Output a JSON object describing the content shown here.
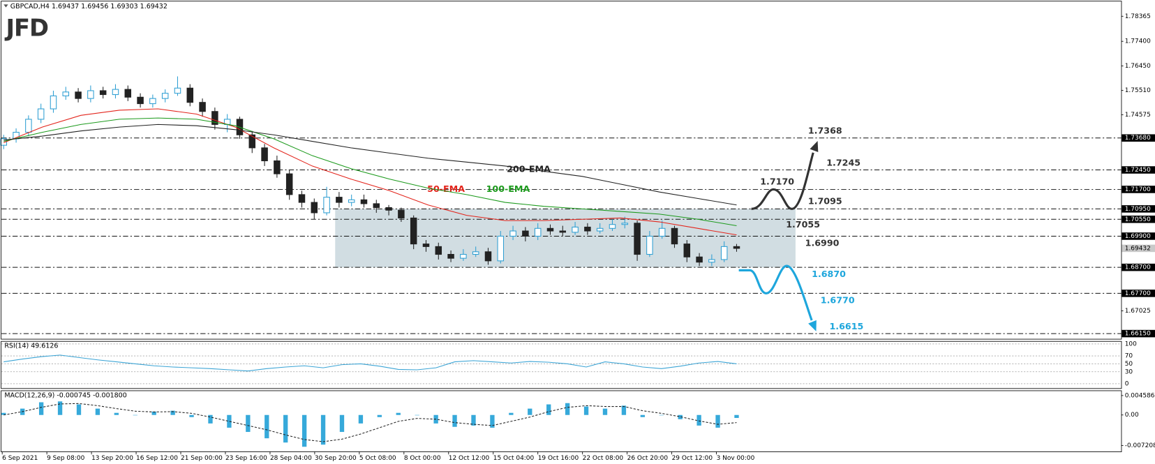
{
  "header": "GBPCAD,H4 1.69437 1.69456 1.69303 1.69432",
  "logo": "JFD",
  "chart_data": [
    {
      "type": "candlestick",
      "ylim": [
        1.6595,
        1.7899
      ],
      "yticks": [
        1.78365,
        {
          "value": 1.774,
          "label": "1.77400"
        },
        {
          "value": 1.7645,
          "label": "1.76450"
        },
        {
          "value": 1.7551,
          "label": "1.75510"
        },
        1.74575,
        1.67025
      ],
      "up_color": "#2f9fd3",
      "down_color": "#222222",
      "open": [
        1.734,
        1.7365,
        1.739,
        1.744,
        1.748,
        1.753,
        1.7545,
        1.752,
        1.755,
        1.7535,
        1.7555,
        1.7525,
        1.75,
        1.752,
        1.754,
        1.756,
        1.7505,
        1.747,
        1.742,
        1.744,
        1.738,
        1.733,
        1.728,
        1.723,
        1.715,
        1.712,
        1.708,
        1.714,
        1.712,
        1.713,
        1.7115,
        1.71,
        1.709,
        1.706,
        1.696,
        1.695,
        1.692,
        1.6905,
        1.692,
        1.693,
        1.6895,
        1.699,
        1.701,
        1.699,
        1.702,
        1.701,
        1.7005,
        1.7025,
        1.701,
        1.702,
        1.7035,
        1.704,
        1.692,
        1.699,
        1.702,
        1.696,
        1.691,
        1.689,
        1.69,
        1.695
      ],
      "high": [
        1.738,
        1.7405,
        1.7455,
        1.75,
        1.755,
        1.7565,
        1.756,
        1.757,
        1.7565,
        1.7575,
        1.757,
        1.754,
        1.7535,
        1.7555,
        1.7605,
        1.7575,
        1.752,
        1.7485,
        1.746,
        1.745,
        1.7395,
        1.7345,
        1.73,
        1.7245,
        1.7165,
        1.7135,
        1.718,
        1.716,
        1.715,
        1.715,
        1.713,
        1.711,
        1.71,
        1.707,
        1.6975,
        1.6965,
        1.6935,
        1.694,
        1.695,
        1.6945,
        1.701,
        1.703,
        1.7025,
        1.704,
        1.7035,
        1.703,
        1.7045,
        1.704,
        1.704,
        1.7055,
        1.7065,
        1.705,
        1.701,
        1.705,
        1.703,
        1.6975,
        1.6925,
        1.692,
        1.697,
        1.696
      ],
      "low": [
        1.7325,
        1.735,
        1.7375,
        1.7425,
        1.7465,
        1.7515,
        1.7505,
        1.7505,
        1.752,
        1.752,
        1.751,
        1.7485,
        1.7485,
        1.7505,
        1.753,
        1.749,
        1.745,
        1.74,
        1.739,
        1.7365,
        1.731,
        1.726,
        1.7215,
        1.713,
        1.71,
        1.7055,
        1.707,
        1.71,
        1.7105,
        1.71,
        1.708,
        1.707,
        1.7045,
        1.694,
        1.693,
        1.69,
        1.689,
        1.6895,
        1.691,
        1.688,
        1.6885,
        1.6975,
        1.697,
        1.6975,
        1.6995,
        1.699,
        1.6995,
        1.6995,
        1.7,
        1.701,
        1.702,
        1.6895,
        1.691,
        1.698,
        1.6945,
        1.689,
        1.6875,
        1.6875,
        1.689,
        1.693
      ],
      "close": [
        1.7365,
        1.739,
        1.744,
        1.748,
        1.753,
        1.7545,
        1.752,
        1.755,
        1.7535,
        1.7555,
        1.7525,
        1.75,
        1.752,
        1.754,
        1.756,
        1.7505,
        1.747,
        1.742,
        1.744,
        1.738,
        1.733,
        1.728,
        1.723,
        1.715,
        1.712,
        1.708,
        1.714,
        1.712,
        1.713,
        1.7115,
        1.71,
        1.709,
        1.706,
        1.696,
        1.695,
        1.692,
        1.6905,
        1.692,
        1.693,
        1.6895,
        1.699,
        1.701,
        1.699,
        1.702,
        1.701,
        1.7005,
        1.7025,
        1.701,
        1.702,
        1.7035,
        1.704,
        1.692,
        1.699,
        1.702,
        1.696,
        1.691,
        1.689,
        1.69,
        1.695,
        1.6943
      ],
      "series": [
        {
          "name": "50-EMA",
          "color": "#e3241b",
          "values": [
            1.735,
            1.741,
            1.7455,
            1.7475,
            1.748,
            1.746,
            1.741,
            1.733,
            1.726,
            1.721,
            1.7165,
            1.711,
            1.707,
            1.705,
            1.705,
            1.7055,
            1.706,
            1.7045,
            1.702,
            1.6995
          ]
        },
        {
          "name": "100-EMA",
          "color": "#1c9a1c",
          "values": [
            1.7355,
            1.739,
            1.742,
            1.744,
            1.7445,
            1.744,
            1.7415,
            1.7365,
            1.73,
            1.725,
            1.721,
            1.7175,
            1.715,
            1.712,
            1.7105,
            1.7095,
            1.7085,
            1.7075,
            1.7055,
            1.703
          ]
        },
        {
          "name": "200-EMA",
          "color": "#222222",
          "values": [
            1.736,
            1.7375,
            1.7395,
            1.741,
            1.742,
            1.7415,
            1.74,
            1.738,
            1.7355,
            1.733,
            1.731,
            1.729,
            1.7275,
            1.726,
            1.724,
            1.722,
            1.719,
            1.716,
            1.7135,
            1.711
          ]
        }
      ],
      "levels": [
        {
          "value": 1.7368,
          "axis_label": "1.73680",
          "label": "1.7368",
          "color": "#333333"
        },
        {
          "value": 1.7245,
          "axis_label": "1.72450",
          "label": "1.7245",
          "color": "#333333"
        },
        {
          "value": 1.717,
          "axis_label": "1.71700",
          "label": "1.7170",
          "color": "#333333"
        },
        {
          "value": 1.7095,
          "axis_label": "1.70950",
          "label": "1.7095",
          "color": "#333333"
        },
        {
          "value": 1.7055,
          "axis_label": "1.70550",
          "label": "1.7055",
          "color": "#333333"
        },
        {
          "value": 1.699,
          "axis_label": "1.69900",
          "label": "1.6990",
          "color": "#333333"
        },
        {
          "value": 1.687,
          "axis_label": "1.68700",
          "label": "1.6870",
          "color": "#1ea6dc"
        },
        {
          "value": 1.677,
          "axis_label": "1.67700",
          "label": "1.6770",
          "color": "#1ea6dc"
        },
        {
          "value": 1.6615,
          "axis_label": "1.66150",
          "label": "1.6615",
          "color": "#1ea6dc"
        }
      ],
      "last_price": {
        "value": 1.69432,
        "label": "1.69432"
      },
      "x_labels": [
        "6 Sep 2021",
        "9 Sep 08:00",
        "13 Sep 20:00",
        "16 Sep 12:00",
        "21 Sep 00:00",
        "23 Sep 16:00",
        "28 Sep 04:00",
        "30 Sep 20:00",
        "5 Oct 08:00",
        "8 Oct 00:00",
        "12 Oct 12:00",
        "15 Oct 04:00",
        "19 Oct 16:00",
        "22 Oct 08:00",
        "26 Oct 20:00",
        "29 Oct 12:00",
        "3 Nov 00:00"
      ]
    },
    {
      "type": "line",
      "title": "RSI(14) 49.6126",
      "ylim": [
        0,
        100
      ],
      "yticks": [
        100,
        70,
        50,
        30,
        0
      ],
      "color": "#3ba4d5",
      "values": [
        55,
        62,
        68,
        72,
        66,
        60,
        55,
        50,
        45,
        42,
        40,
        38,
        35,
        32,
        38,
        42,
        45,
        40,
        48,
        50,
        44,
        36,
        35,
        40,
        55,
        58,
        55,
        52,
        56,
        54,
        50,
        42,
        55,
        50,
        42,
        38,
        44,
        52,
        56,
        50
      ]
    },
    {
      "type": "macd",
      "title": "MACD(12,26,9) -0.000745 -0.001800",
      "ylim": [
        -0.00861,
        0.00564
      ],
      "yticks": [
        0.004586,
        {
          "value": 0,
          "label": "0.00"
        },
        -0.007208
      ],
      "histogram": {
        "color": "#36a9da",
        "values": [
          0.0005,
          0.0015,
          0.003,
          0.0032,
          0.0025,
          0.0015,
          0.0005,
          0.0,
          0.0008,
          0.001,
          -0.0005,
          -0.002,
          -0.003,
          -0.004,
          -0.0055,
          -0.0065,
          -0.0075,
          -0.007,
          -0.004,
          -0.002,
          -0.0005,
          0.0005,
          0.0,
          -0.002,
          -0.0028,
          -0.0025,
          -0.003,
          0.0005,
          0.0015,
          0.0025,
          0.0028,
          0.002,
          0.0015,
          0.0022,
          -0.0005,
          0.0,
          -0.001,
          -0.0025,
          -0.003,
          -0.0007
        ]
      },
      "signal": {
        "color": "#222222",
        "values": [
          0.0,
          0.0008,
          0.0018,
          0.0026,
          0.0027,
          0.0022,
          0.0015,
          0.0009,
          0.0007,
          0.0008,
          0.0004,
          -0.0005,
          -0.0015,
          -0.0025,
          -0.0035,
          -0.0047,
          -0.0058,
          -0.0063,
          -0.0057,
          -0.0045,
          -0.003,
          -0.0015,
          -0.0008,
          -0.001,
          -0.0018,
          -0.0022,
          -0.0025,
          -0.0015,
          -0.0005,
          0.0008,
          0.0018,
          0.0022,
          0.002,
          0.002,
          0.001,
          0.0004,
          -0.0004,
          -0.0014,
          -0.0022,
          -0.0018
        ]
      }
    }
  ]
}
